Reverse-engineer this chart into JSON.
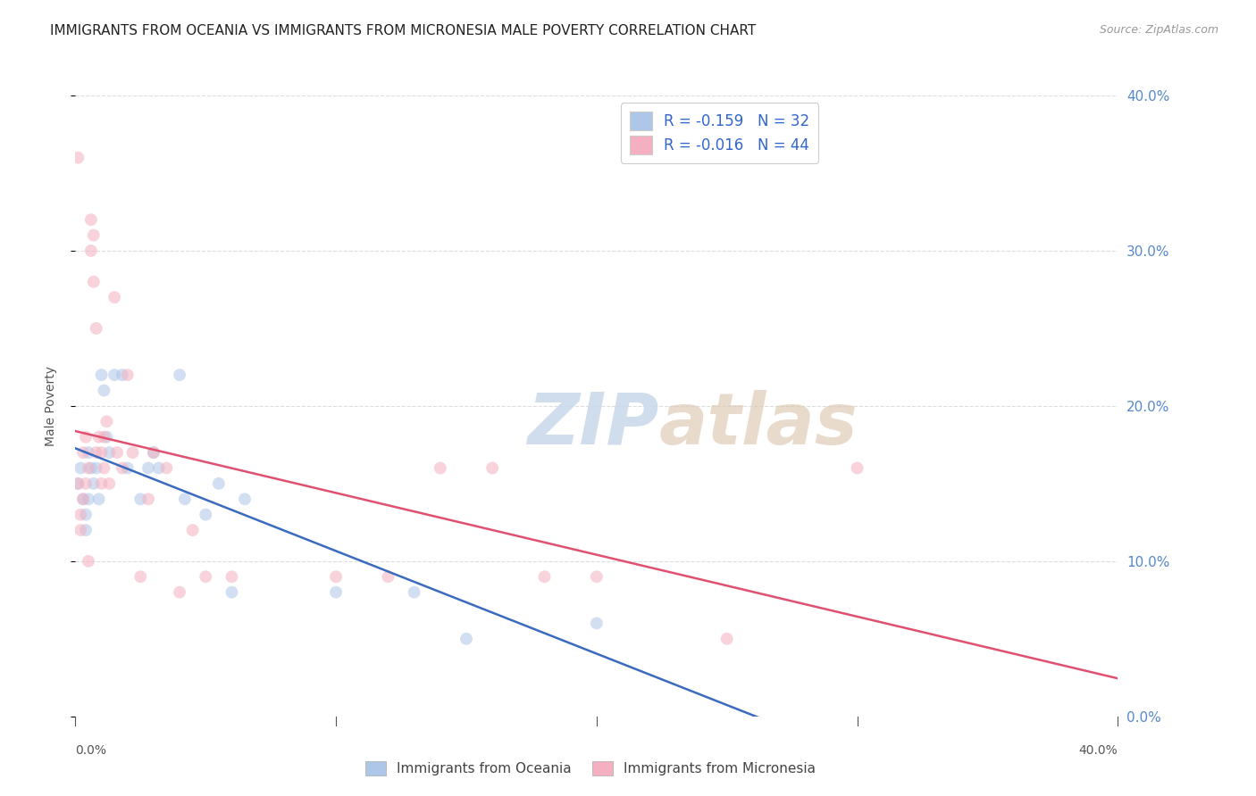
{
  "title": "IMMIGRANTS FROM OCEANIA VS IMMIGRANTS FROM MICRONESIA MALE POVERTY CORRELATION CHART",
  "source": "Source: ZipAtlas.com",
  "ylabel": "Male Poverty",
  "watermark_zip": "ZIP",
  "watermark_atlas": "atlas",
  "series": [
    {
      "name": "Immigrants from Oceania",
      "color": "#aec6e8",
      "line_color": "#3a6bbf",
      "R": -0.159,
      "N": 32,
      "x": [
        0.001,
        0.002,
        0.003,
        0.004,
        0.004,
        0.005,
        0.005,
        0.006,
        0.007,
        0.008,
        0.009,
        0.01,
        0.011,
        0.012,
        0.013,
        0.015,
        0.018,
        0.02,
        0.025,
        0.028,
        0.03,
        0.032,
        0.04,
        0.042,
        0.05,
        0.055,
        0.06,
        0.065,
        0.1,
        0.13,
        0.15,
        0.2
      ],
      "y": [
        0.15,
        0.16,
        0.14,
        0.13,
        0.12,
        0.17,
        0.14,
        0.16,
        0.15,
        0.16,
        0.14,
        0.22,
        0.21,
        0.18,
        0.17,
        0.22,
        0.22,
        0.16,
        0.14,
        0.16,
        0.17,
        0.16,
        0.22,
        0.14,
        0.13,
        0.15,
        0.08,
        0.14,
        0.08,
        0.08,
        0.05,
        0.06
      ]
    },
    {
      "name": "Immigrants from Micronesia",
      "color": "#f4b0c0",
      "line_color": "#e05070",
      "R": -0.016,
      "N": 44,
      "x": [
        0.001,
        0.001,
        0.002,
        0.002,
        0.003,
        0.003,
        0.004,
        0.004,
        0.005,
        0.005,
        0.006,
        0.006,
        0.007,
        0.007,
        0.008,
        0.008,
        0.009,
        0.01,
        0.01,
        0.011,
        0.011,
        0.012,
        0.013,
        0.015,
        0.016,
        0.018,
        0.02,
        0.022,
        0.025,
        0.028,
        0.03,
        0.035,
        0.04,
        0.045,
        0.05,
        0.06,
        0.1,
        0.12,
        0.14,
        0.16,
        0.18,
        0.2,
        0.25,
        0.3
      ],
      "y": [
        0.36,
        0.15,
        0.13,
        0.12,
        0.17,
        0.14,
        0.18,
        0.15,
        0.16,
        0.1,
        0.32,
        0.3,
        0.31,
        0.28,
        0.25,
        0.17,
        0.18,
        0.17,
        0.15,
        0.18,
        0.16,
        0.19,
        0.15,
        0.27,
        0.17,
        0.16,
        0.22,
        0.17,
        0.09,
        0.14,
        0.17,
        0.16,
        0.08,
        0.12,
        0.09,
        0.09,
        0.09,
        0.09,
        0.16,
        0.16,
        0.09,
        0.09,
        0.05,
        0.16
      ]
    }
  ],
  "xlim": [
    0.0,
    0.4
  ],
  "ylim": [
    0.0,
    0.4
  ],
  "ytick_labels": [
    "0.0%",
    "10.0%",
    "20.0%",
    "30.0%",
    "40.0%"
  ],
  "ytick_vals": [
    0.0,
    0.1,
    0.2,
    0.3,
    0.4
  ],
  "xtick_vals": [
    0.0,
    0.1,
    0.2,
    0.3,
    0.4
  ],
  "grid_color": "#dddddd",
  "background_color": "#ffffff",
  "right_tick_color": "#5588cc",
  "title_fontsize": 11,
  "marker_size": 100,
  "marker_alpha": 0.55
}
